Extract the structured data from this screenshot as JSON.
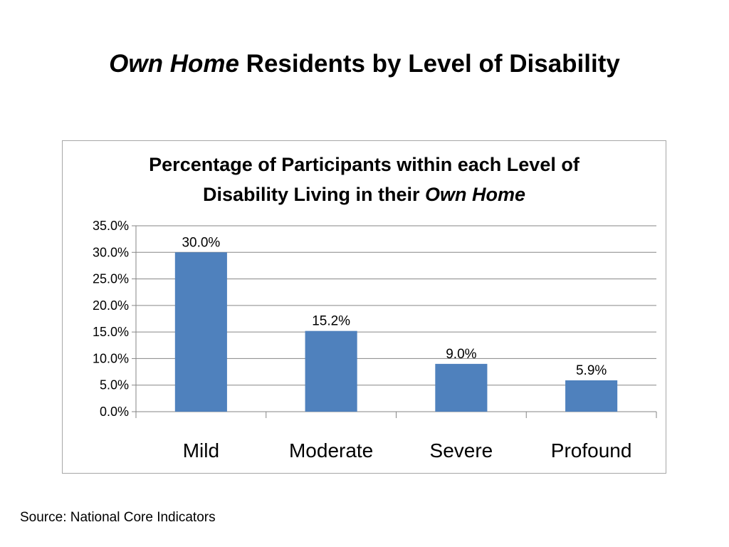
{
  "slide": {
    "title_italic": "Own Home",
    "title_rest": " Residents by Level of Disability",
    "source": "Source:  National Core Indicators"
  },
  "chart_data": {
    "type": "bar",
    "title_line1": "Percentage of Participants within each Level of",
    "title_line2_prefix": "Disability Living in their ",
    "title_line2_italic": "Own Home",
    "categories": [
      "Mild",
      "Moderate",
      "Severe",
      "Profound"
    ],
    "values": [
      30.0,
      15.2,
      9.0,
      5.9
    ],
    "value_labels": [
      "30.0%",
      "15.2%",
      "9.0%",
      "5.9%"
    ],
    "ylim": [
      0,
      35
    ],
    "yticks": [
      0,
      5,
      10,
      15,
      20,
      25,
      30,
      35
    ],
    "ytick_labels": [
      "0.0%",
      "5.0%",
      "10.0%",
      "15.0%",
      "20.0%",
      "25.0%",
      "30.0%",
      "35.0%"
    ],
    "xlabel": "",
    "ylabel": "",
    "grid": true,
    "legend": "none",
    "bar_color": "#4f81bd"
  }
}
